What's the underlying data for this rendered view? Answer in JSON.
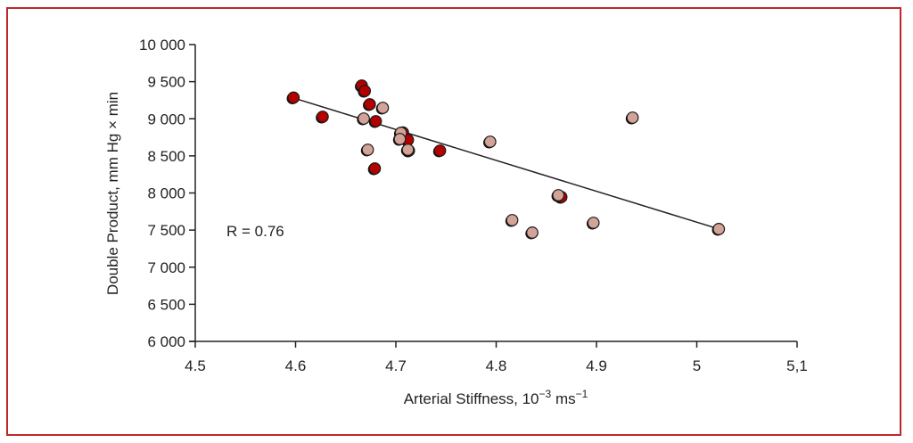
{
  "chart_data": {
    "type": "scatter",
    "title": "",
    "xlabel": "Arterial Stiffness, 10",
    "xlabel_sup1": "−3",
    "xlabel_mid": " ms",
    "xlabel_sup2": "−1",
    "ylabel": "Double Product, mm Hg × min",
    "xlim": [
      4.5,
      5.1
    ],
    "ylim": [
      6000,
      10000
    ],
    "x_ticks": [
      4.5,
      4.6,
      4.7,
      4.8,
      4.9,
      5.0,
      5.1
    ],
    "x_tick_labels": [
      "4.5",
      "4.6",
      "4.7",
      "4.8",
      "4.9",
      "5",
      "5,1"
    ],
    "y_ticks": [
      6000,
      6500,
      7000,
      7500,
      8000,
      8500,
      9000,
      9500,
      10000
    ],
    "y_tick_labels": [
      "6 000",
      "6 500",
      "7 000",
      "7 500",
      "8 000",
      "8 500",
      "9 000",
      "9 500",
      "10 000"
    ],
    "grid": false,
    "annotation": "R = 0.76",
    "colors": {
      "red": "#b50000",
      "pink": "#d4a397",
      "frame": "#c0272d",
      "line": "#222222"
    },
    "series": [
      {
        "name": "red",
        "color": "#b50000",
        "points": [
          [
            4.598,
            9285
          ],
          [
            4.627,
            9027
          ],
          [
            4.666,
            9447
          ],
          [
            4.669,
            9375
          ],
          [
            4.674,
            9195
          ],
          [
            4.68,
            8967
          ],
          [
            4.679,
            8330
          ],
          [
            4.707,
            8815
          ],
          [
            4.713,
            8570
          ],
          [
            4.712,
            8715
          ],
          [
            4.744,
            8571
          ],
          [
            4.865,
            7946
          ]
        ]
      },
      {
        "name": "pink",
        "color": "#d4a397",
        "points": [
          [
            4.687,
            9147
          ],
          [
            4.668,
            9003
          ],
          [
            4.672,
            8583
          ],
          [
            4.705,
            8810
          ],
          [
            4.704,
            8727
          ],
          [
            4.712,
            8583
          ],
          [
            4.794,
            8691
          ],
          [
            4.862,
            7970
          ],
          [
            4.816,
            7634
          ],
          [
            4.836,
            7466
          ],
          [
            4.897,
            7598
          ],
          [
            4.936,
            9015
          ],
          [
            5.022,
            7514
          ]
        ]
      }
    ],
    "regression_line": {
      "x": [
        4.598,
        5.022
      ],
      "y": [
        9280,
        7515
      ]
    }
  }
}
